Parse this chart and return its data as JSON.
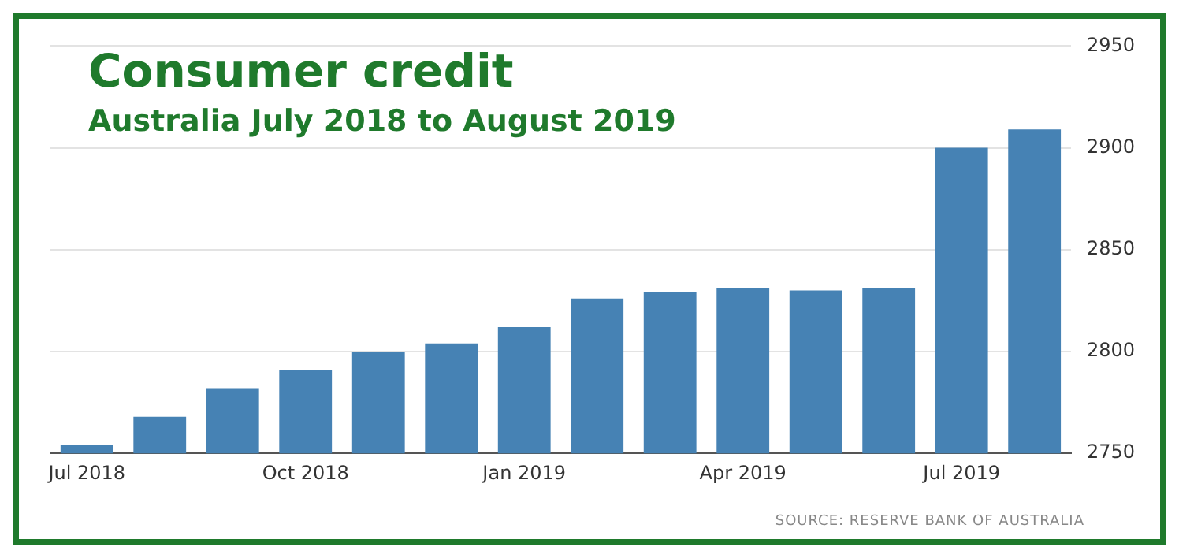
{
  "chart_data": {
    "type": "bar",
    "title": "Consumer credit",
    "subtitle": "Australia July 2018 to August 2019",
    "categories": [
      "Jul 2018",
      null,
      null,
      "Oct 2018",
      null,
      null,
      "Jan 2019",
      null,
      null,
      "Apr 2019",
      null,
      null,
      "Jul 2019",
      null
    ],
    "series": [
      {
        "color": "#4682b4",
        "values": [
          2754,
          2768,
          2782,
          2791,
          2800,
          2804,
          2812,
          2826,
          2829,
          2831,
          2830,
          2831,
          2900,
          2909
        ]
      }
    ],
    "ylim": [
      2750,
      2950
    ],
    "yticks": [
      2750,
      2800,
      2850,
      2900,
      2950
    ],
    "grid": "y",
    "legend": false,
    "annotations": [
      "SOURCE: RESERVE BANK OF AUSTRALIA"
    ]
  }
}
